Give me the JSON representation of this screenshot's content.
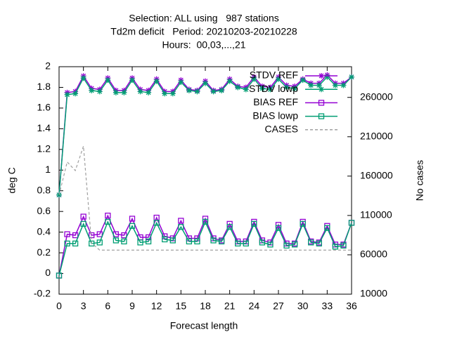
{
  "chart_data": {
    "type": "line",
    "title": [
      "Selection: ALL using   987 stations",
      "Td2m deficit   Period: 20210203-20210228",
      "Hours:  00,03,...,21"
    ],
    "xlabel": "Forecast length",
    "ylabel": "deg C",
    "y2label": "No cases",
    "x": [
      0,
      1,
      2,
      3,
      4,
      5,
      6,
      7,
      8,
      9,
      10,
      11,
      12,
      13,
      14,
      15,
      16,
      17,
      18,
      19,
      20,
      21,
      22,
      23,
      24,
      25,
      26,
      27,
      28,
      29,
      30,
      31,
      32,
      33,
      34,
      35,
      36
    ],
    "xlim": [
      0,
      36
    ],
    "xticks": [
      0,
      3,
      6,
      9,
      12,
      15,
      18,
      21,
      24,
      27,
      30,
      33,
      36
    ],
    "ylim": [
      -0.2,
      2
    ],
    "yticks": [
      -0.2,
      0,
      0.2,
      0.4,
      0.6,
      0.8,
      1,
      1.2,
      1.4,
      1.6,
      1.8,
      2
    ],
    "y2lim": [
      10000,
      299000
    ],
    "y2ticks": [
      10000,
      60000,
      110000,
      160000,
      210000,
      260000
    ],
    "legend": "top-right",
    "series": [
      {
        "name": "STDV REF",
        "color": "#9400d3",
        "marker": "star",
        "values": [
          0.76,
          1.75,
          1.76,
          1.91,
          1.79,
          1.78,
          1.89,
          1.77,
          1.77,
          1.89,
          1.78,
          1.77,
          1.88,
          1.76,
          1.76,
          1.87,
          1.78,
          1.77,
          1.86,
          1.77,
          1.78,
          1.88,
          1.81,
          1.8,
          1.9,
          1.81,
          1.8,
          1.9,
          1.82,
          1.81,
          1.88,
          1.84,
          1.84,
          1.92,
          1.84,
          1.84,
          1.9
        ]
      },
      {
        "name": "STDV lowp",
        "color": "#009e73",
        "marker": "star",
        "values": [
          0.76,
          1.73,
          1.74,
          1.89,
          1.77,
          1.76,
          1.87,
          1.75,
          1.75,
          1.87,
          1.76,
          1.75,
          1.86,
          1.74,
          1.74,
          1.85,
          1.77,
          1.76,
          1.84,
          1.76,
          1.77,
          1.86,
          1.8,
          1.78,
          1.88,
          1.79,
          1.78,
          1.88,
          1.8,
          1.79,
          1.87,
          1.82,
          1.82,
          1.9,
          1.82,
          1.82,
          1.9
        ]
      },
      {
        "name": "BIAS REF",
        "color": "#9400d3",
        "marker": "square",
        "values": [
          -0.02,
          0.38,
          0.37,
          0.55,
          0.37,
          0.38,
          0.56,
          0.38,
          0.37,
          0.53,
          0.35,
          0.35,
          0.54,
          0.36,
          0.34,
          0.51,
          0.34,
          0.34,
          0.53,
          0.34,
          0.32,
          0.48,
          0.31,
          0.31,
          0.5,
          0.32,
          0.3,
          0.47,
          0.29,
          0.29,
          0.5,
          0.31,
          0.3,
          0.46,
          0.28,
          0.28,
          0.49
        ]
      },
      {
        "name": "BIAS lowp",
        "color": "#009e73",
        "marker": "square",
        "values": [
          -0.02,
          0.29,
          0.29,
          0.48,
          0.29,
          0.3,
          0.5,
          0.32,
          0.31,
          0.46,
          0.3,
          0.31,
          0.49,
          0.33,
          0.32,
          0.45,
          0.31,
          0.31,
          0.5,
          0.32,
          0.31,
          0.45,
          0.29,
          0.29,
          0.48,
          0.3,
          0.28,
          0.44,
          0.27,
          0.28,
          0.48,
          0.3,
          0.29,
          0.44,
          0.26,
          0.27,
          0.49
        ]
      },
      {
        "name": "CASES",
        "color": "#a0a0a0",
        "dash": true,
        "axis": "y2",
        "values": [
          135900,
          178000,
          167000,
          198000,
          75000,
          66000,
          66000,
          66000,
          66000,
          66000,
          66000,
          66000,
          66000,
          66000,
          66000,
          66000,
          66000,
          66000,
          66000,
          66000,
          66000,
          66000,
          66000,
          66000,
          66000,
          66000,
          66000,
          66000,
          66000,
          66000,
          66000,
          66000,
          66000,
          66000,
          66000,
          66000,
          66000
        ]
      }
    ]
  }
}
